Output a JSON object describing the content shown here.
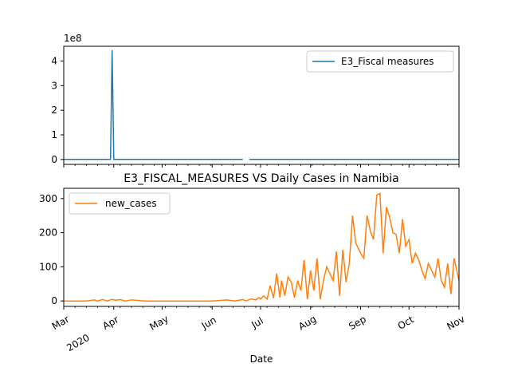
{
  "chart_data": [
    {
      "type": "line",
      "title": "",
      "ylabel": "",
      "ylim": [
        -0.2,
        4.6
      ],
      "y_scale_label": "1e8",
      "y_ticks": [
        0,
        1,
        2,
        3,
        4
      ],
      "series": [
        {
          "name": "E3_Fiscal measures",
          "color": "#1f77b4",
          "segments": [
            {
              "x": [
                "2020-03-01",
                "2020-03-30",
                "2020-03-31",
                "2020-04-01",
                "2020-06-20"
              ],
              "y": [
                0,
                0,
                4.44,
                0,
                0
              ]
            },
            {
              "x": [
                "2020-06-24",
                "2020-11-01"
              ],
              "y": [
                0,
                0
              ]
            }
          ]
        }
      ],
      "legend": "upper-right"
    },
    {
      "type": "line",
      "title": "E3_FISCAL_MEASURES VS Daily Cases in Namibia",
      "xlabel": "Date",
      "ylim": [
        -16,
        330
      ],
      "y_ticks": [
        0,
        100,
        200,
        300
      ],
      "x_range": [
        "2020-03-01",
        "2020-11-01"
      ],
      "x_ticks": [
        "2020-03-01",
        "2020-04-01",
        "2020-05-01",
        "2020-06-01",
        "2020-07-01",
        "2020-08-01",
        "2020-09-01",
        "2020-10-01",
        "2020-11-01"
      ],
      "x_tick_labels": [
        "Mar",
        "Apr",
        "May",
        "Jun",
        "Jul",
        "Aug",
        "Sep",
        "Oct",
        "Nov"
      ],
      "x_year_label": "2020",
      "legend": "upper-left",
      "series": [
        {
          "name": "new_cases",
          "color": "#ff7f0e",
          "x": [
            "2020-03-01",
            "2020-03-15",
            "2020-03-20",
            "2020-03-22",
            "2020-03-25",
            "2020-03-28",
            "2020-03-31",
            "2020-04-02",
            "2020-04-05",
            "2020-04-08",
            "2020-04-12",
            "2020-04-20",
            "2020-05-01",
            "2020-05-15",
            "2020-06-01",
            "2020-06-10",
            "2020-06-15",
            "2020-06-20",
            "2020-06-22",
            "2020-06-25",
            "2020-06-28",
            "2020-06-30",
            "2020-07-01",
            "2020-07-03",
            "2020-07-05",
            "2020-07-07",
            "2020-07-09",
            "2020-07-11",
            "2020-07-13",
            "2020-07-14",
            "2020-07-16",
            "2020-07-18",
            "2020-07-20",
            "2020-07-22",
            "2020-07-24",
            "2020-07-26",
            "2020-07-28",
            "2020-07-30",
            "2020-08-01",
            "2020-08-03",
            "2020-08-05",
            "2020-08-07",
            "2020-08-09",
            "2020-08-11",
            "2020-08-13",
            "2020-08-15",
            "2020-08-17",
            "2020-08-19",
            "2020-08-21",
            "2020-08-23",
            "2020-08-25",
            "2020-08-27",
            "2020-08-29",
            "2020-09-01",
            "2020-09-03",
            "2020-09-05",
            "2020-09-07",
            "2020-09-09",
            "2020-09-11",
            "2020-09-13",
            "2020-09-15",
            "2020-09-17",
            "2020-09-19",
            "2020-09-21",
            "2020-09-23",
            "2020-09-25",
            "2020-09-27",
            "2020-09-29",
            "2020-10-01",
            "2020-10-03",
            "2020-10-05",
            "2020-10-07",
            "2020-10-09",
            "2020-10-11",
            "2020-10-13",
            "2020-10-15",
            "2020-10-17",
            "2020-10-19",
            "2020-10-21",
            "2020-10-23",
            "2020-10-25",
            "2020-10-27",
            "2020-10-29",
            "2020-10-31",
            "2020-11-01"
          ],
          "y": [
            0,
            0,
            3,
            0,
            4,
            0,
            5,
            2,
            4,
            0,
            3,
            0,
            0,
            0,
            0,
            3,
            0,
            4,
            0,
            6,
            3,
            10,
            5,
            15,
            5,
            45,
            8,
            80,
            10,
            60,
            15,
            70,
            55,
            10,
            60,
            30,
            120,
            5,
            90,
            30,
            125,
            5,
            60,
            100,
            80,
            60,
            145,
            15,
            150,
            55,
            110,
            250,
            170,
            140,
            125,
            250,
            205,
            180,
            310,
            315,
            140,
            275,
            245,
            200,
            195,
            140,
            240,
            160,
            180,
            110,
            140,
            120,
            90,
            65,
            110,
            90,
            70,
            125,
            60,
            40,
            110,
            20,
            125,
            80,
            60
          ]
        }
      ]
    }
  ]
}
